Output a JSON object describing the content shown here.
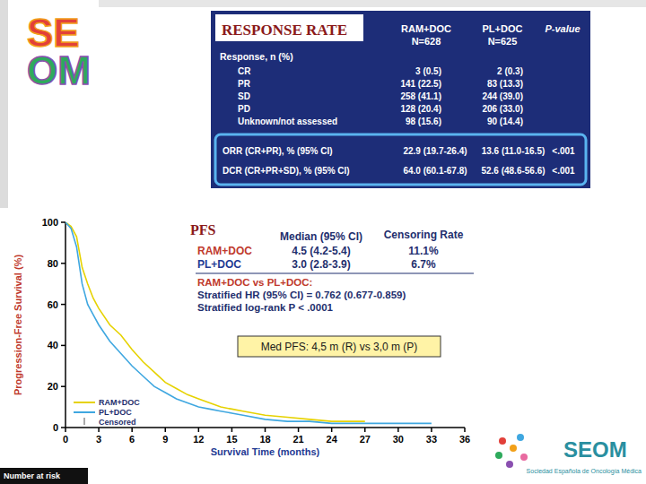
{
  "logo": {
    "top": [
      "SE",
      "OM"
    ],
    "bottom": {
      "name": "SEOM",
      "subtitle": "Sociedad Española de Oncología Médica"
    }
  },
  "table": {
    "title": "RESPONSE RATE",
    "columns": [
      [
        "RAM+DOC",
        "N=628"
      ],
      [
        "PL+DOC",
        "N=625"
      ],
      [
        "P-value"
      ]
    ],
    "section": "Response, n (%)",
    "rows": [
      [
        "CR",
        "3 (0.5)",
        "2 (0.3)"
      ],
      [
        "PR",
        "141 (22.5)",
        "83 (13.3)"
      ],
      [
        "SD",
        "258 (41.1)",
        "244 (39.0)"
      ],
      [
        "PD",
        "128 (20.4)",
        "206 (33.0)"
      ],
      [
        "Unknown/not assessed",
        "98 (15.6)",
        "90 (14.4)"
      ]
    ],
    "highlight_rows": [
      [
        "ORR (CR+PR), % (95% CI)",
        "22.9 (19.7-26.4)",
        "13.6 (11.0-16.5)",
        "<.001"
      ],
      [
        "DCR (CR+PR+SD), % (95% CI)",
        "64.0 (60.1-67.8)",
        "52.6 (48.6-56.6)",
        "<.001"
      ]
    ]
  },
  "chart_data": {
    "type": "line",
    "title": "PFS",
    "x_label": "Survival Time (months)",
    "y_label": "Progression-Free Survival (%)",
    "x": [
      0,
      0.5,
      1,
      1.5,
      2,
      2.5,
      3,
      4,
      5,
      6,
      7,
      8,
      9,
      10,
      11,
      12,
      13,
      14,
      15,
      16,
      18,
      20,
      22,
      24,
      27,
      30,
      33
    ],
    "series": [
      {
        "name": "RAM+DOC",
        "color": "#e6d200",
        "values": [
          100,
          98,
          93,
          78,
          70,
          63,
          58,
          50,
          45,
          38,
          32,
          27,
          22,
          19,
          16,
          14,
          12,
          10,
          9,
          8,
          6,
          5,
          4,
          3,
          3,
          null,
          null
        ]
      },
      {
        "name": "PL+DOC",
        "color": "#3fa7e0",
        "values": [
          100,
          97,
          88,
          70,
          60,
          55,
          50,
          42,
          36,
          30,
          25,
          20,
          17,
          14,
          12,
          10,
          9,
          8,
          7,
          6,
          4,
          3,
          3,
          2,
          2,
          2,
          2
        ]
      }
    ],
    "xlim": [
      0,
      36
    ],
    "ylim": [
      0,
      100
    ],
    "xticks": [
      0,
      3,
      6,
      9,
      12,
      15,
      18,
      21,
      24,
      27,
      30,
      33,
      36
    ],
    "yticks": [
      0,
      20,
      40,
      60,
      80,
      100
    ],
    "grid": false,
    "legend": "lower left",
    "stats": {
      "median_header": "Median (95% CI)",
      "censoring_header": "Censoring Rate",
      "rows": [
        {
          "median": "4.5 (4.2-5.4)",
          "censoring": "11.1%"
        },
        {
          "median": "3.0 (2.8-3.9)",
          "censoring": "6.7%"
        }
      ],
      "comparison": "RAM+DOC vs PL+DOC:",
      "hr": "Stratified HR (95% CI) = 0.762 (0.677-0.859)",
      "logrank": "Stratified log-rank P < .0001"
    },
    "callout": "Med PFS: 4,5 m (R) vs 3,0 m (P)",
    "censored_label": "Censored",
    "number_at_risk": "Number at risk"
  }
}
